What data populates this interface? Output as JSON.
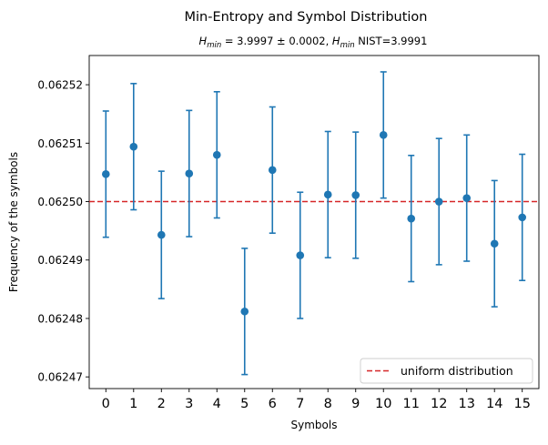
{
  "chart_data": {
    "type": "scatter",
    "title": "Min-Entropy and Symbol Distribution",
    "subtitle": {
      "h_label": "H",
      "h_sub": "min",
      "value_text": " = 3.9997 ± 0.0002, ",
      "nist_text": " NIST=3.9991"
    },
    "xlabel": "Symbols",
    "ylabel": "Frequency of the symbols",
    "ylim": [
      0.062468,
      0.062525
    ],
    "yticks": [
      0.06247,
      0.06248,
      0.06249,
      0.0625,
      0.06251,
      0.06252
    ],
    "ytick_labels": [
      "0.06247",
      "0.06248",
      "0.06249",
      "0.06250",
      "0.06251",
      "0.06252"
    ],
    "xlim": [
      -0.6,
      15.6
    ],
    "categories": [
      "0",
      "1",
      "2",
      "3",
      "4",
      "5",
      "6",
      "7",
      "8",
      "9",
      "10",
      "11",
      "12",
      "13",
      "14",
      "15"
    ],
    "series": [
      {
        "values": [
          0.0625047,
          0.0625094,
          0.0624943,
          0.0625048,
          0.062508,
          0.0624812,
          0.0625054,
          0.0624908,
          0.0625012,
          0.0625011,
          0.0625114,
          0.0624971,
          0.0625,
          0.0625006,
          0.0624928,
          0.0624973
        ],
        "errors": [
          1.08e-05,
          1.08e-05,
          1.09e-05,
          1.08e-05,
          1.08e-05,
          1.08e-05,
          1.08e-05,
          1.08e-05,
          1.08e-05,
          1.08e-05,
          1.08e-05,
          1.08e-05,
          1.08e-05,
          1.08e-05,
          1.08e-05,
          1.08e-05
        ],
        "color": "#1f77b4"
      }
    ],
    "reference_line": {
      "y": 0.0625,
      "label": "uniform distribution",
      "color": "#d62728",
      "style": "dashed"
    },
    "legend_position": "lower-right",
    "grid": false
  }
}
